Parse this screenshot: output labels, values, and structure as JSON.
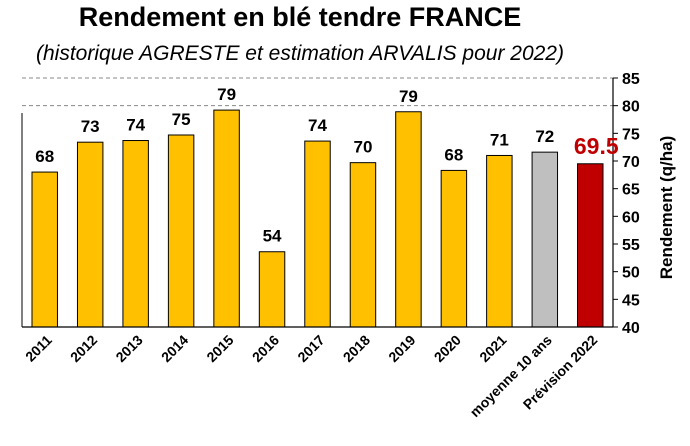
{
  "chart_data": {
    "type": "bar",
    "title": "Rendement en blé tendre FRANCE",
    "subtitle": "(historique AGRESTE et estimation ARVALIS pour 2022)",
    "ylabel": "Rendement (q/ha)",
    "xlabel": "",
    "ylim": [
      40,
      85
    ],
    "yticks": [
      40,
      45,
      50,
      55,
      60,
      65,
      70,
      75,
      80,
      85
    ],
    "gridlines": [
      80,
      85
    ],
    "grid": "dashed horizontal lines at 80 and 85",
    "y_axis_position": "right",
    "legend": "none",
    "categories": [
      "2011",
      "2012",
      "2013",
      "2014",
      "2015",
      "2016",
      "2017",
      "2018",
      "2019",
      "2020",
      "2021",
      "moyenne 10 ans",
      "Prévision 2022"
    ],
    "values": [
      68.0,
      73.4,
      73.7,
      74.7,
      79.2,
      53.6,
      73.6,
      69.7,
      78.9,
      68.3,
      71.0,
      71.6,
      69.5
    ],
    "data_labels": [
      "68",
      "73",
      "74",
      "75",
      "79",
      "54",
      "74",
      "70",
      "79",
      "68",
      "71",
      "72",
      "69.5"
    ],
    "colors": [
      "#FFC000",
      "#FFC000",
      "#FFC000",
      "#FFC000",
      "#FFC000",
      "#FFC000",
      "#FFC000",
      "#FFC000",
      "#FFC000",
      "#FFC000",
      "#FFC000",
      "#BFBFBF",
      "#C00000"
    ],
    "label_colors": [
      "#000000",
      "#000000",
      "#000000",
      "#000000",
      "#000000",
      "#000000",
      "#000000",
      "#000000",
      "#000000",
      "#000000",
      "#000000",
      "#000000",
      "#C00000"
    ]
  }
}
